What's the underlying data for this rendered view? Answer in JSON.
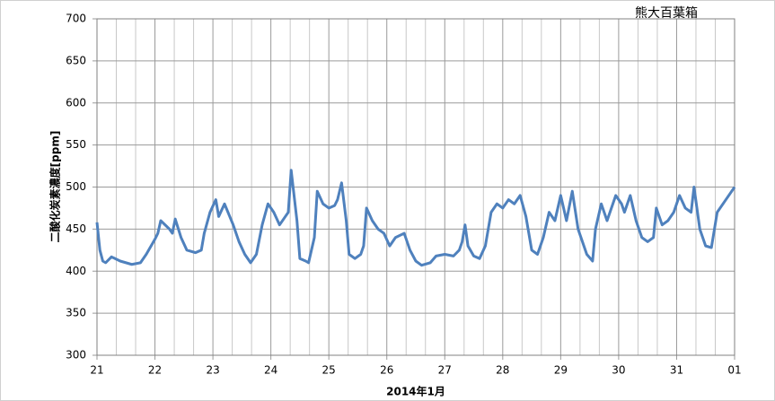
{
  "chart_data": {
    "type": "line",
    "title": "熊大百葉箱",
    "ylabel": "二酸化炭素濃度[ppm]",
    "xlabel": "2014年1月",
    "xlim": [
      0,
      11
    ],
    "xticks": [
      {
        "value": 0,
        "label": "21"
      },
      {
        "value": 1,
        "label": "22"
      },
      {
        "value": 2,
        "label": "23"
      },
      {
        "value": 3,
        "label": "24"
      },
      {
        "value": 4,
        "label": "25"
      },
      {
        "value": 5,
        "label": "26"
      },
      {
        "value": 6,
        "label": "27"
      },
      {
        "value": 7,
        "label": "28"
      },
      {
        "value": 8,
        "label": "29"
      },
      {
        "value": 9,
        "label": "30"
      },
      {
        "value": 10,
        "label": "31"
      },
      {
        "value": 11,
        "label": "01"
      }
    ],
    "ylim": [
      300,
      700
    ],
    "yticks": [
      300,
      350,
      400,
      450,
      500,
      550,
      600,
      650,
      700
    ],
    "grid": true,
    "series": [
      {
        "name": "二酸化炭素濃度",
        "color": "#4f81bd",
        "x": [
          0,
          0.05,
          0.1,
          0.15,
          0.25,
          0.4,
          0.5,
          0.6,
          0.75,
          0.85,
          1.0,
          1.05,
          1.1,
          1.25,
          1.3,
          1.35,
          1.45,
          1.55,
          1.7,
          1.8,
          1.85,
          1.95,
          2.05,
          2.1,
          2.2,
          2.35,
          2.45,
          2.55,
          2.65,
          2.75,
          2.85,
          2.95,
          3.05,
          3.15,
          3.25,
          3.3,
          3.35,
          3.45,
          3.5,
          3.6,
          3.65,
          3.75,
          3.8,
          3.9,
          4.0,
          4.1,
          4.15,
          4.22,
          4.3,
          4.35,
          4.45,
          4.55,
          4.6,
          4.65,
          4.75,
          4.85,
          4.95,
          5.05,
          5.15,
          5.3,
          5.4,
          5.5,
          5.6,
          5.75,
          5.85,
          6.0,
          6.15,
          6.25,
          6.3,
          6.35,
          6.4,
          6.5,
          6.6,
          6.7,
          6.8,
          6.9,
          7.0,
          7.1,
          7.2,
          7.3,
          7.4,
          7.5,
          7.6,
          7.7,
          7.8,
          7.9,
          8.0,
          8.05,
          8.1,
          8.2,
          8.3,
          8.45,
          8.55,
          8.6,
          8.7,
          8.8,
          8.95,
          9.05,
          9.1,
          9.2,
          9.3,
          9.4,
          9.5,
          9.6,
          9.65,
          9.75,
          9.85,
          9.95,
          10.05,
          10.15,
          10.25,
          10.3,
          10.4,
          10.5,
          10.6,
          10.7,
          10.85,
          11.0
        ],
        "values": [
          458,
          425,
          412,
          410,
          417,
          412,
          410,
          408,
          410,
          420,
          438,
          445,
          460,
          450,
          445,
          462,
          440,
          425,
          422,
          425,
          445,
          470,
          485,
          465,
          480,
          455,
          435,
          420,
          410,
          420,
          455,
          480,
          470,
          455,
          465,
          470,
          520,
          460,
          415,
          412,
          410,
          440,
          495,
          480,
          475,
          478,
          485,
          505,
          460,
          420,
          415,
          420,
          430,
          475,
          460,
          450,
          445,
          430,
          440,
          445,
          425,
          412,
          407,
          410,
          418,
          420,
          418,
          425,
          435,
          455,
          430,
          418,
          415,
          430,
          470,
          480,
          475,
          485,
          480,
          490,
          465,
          425,
          420,
          440,
          470,
          460,
          490,
          475,
          460,
          495,
          450,
          420,
          412,
          450,
          480,
          460,
          490,
          480,
          470,
          490,
          460,
          440,
          435,
          440,
          475,
          455,
          460,
          470,
          490,
          475,
          470,
          500,
          450,
          430,
          428,
          470,
          485,
          500
        ]
      }
    ]
  }
}
